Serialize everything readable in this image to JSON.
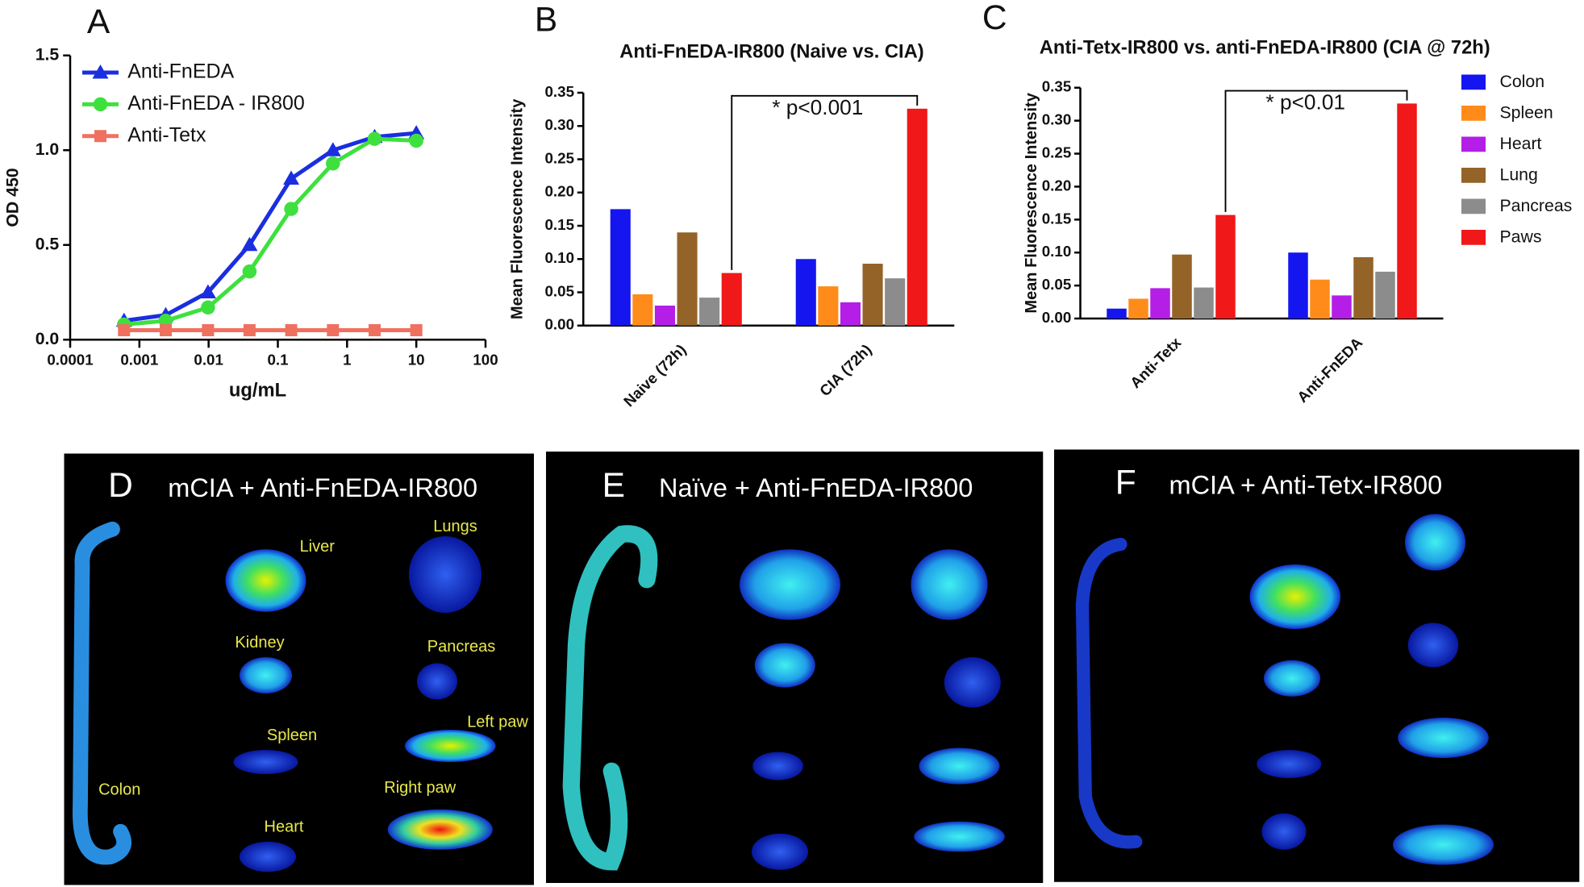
{
  "chart_data": [
    {
      "type": "line",
      "label": "A",
      "xlabel": "ug/mL",
      "ylabel": "OD 450",
      "xscale": "log",
      "x": [
        0.0006,
        0.0024,
        0.0098,
        0.039,
        0.156,
        0.625,
        2.5,
        10
      ],
      "series": [
        {
          "name": "Anti-FnEDA",
          "color": "#1a2ee0",
          "marker": "triangle",
          "values": [
            0.1,
            0.13,
            0.25,
            0.5,
            0.85,
            1.0,
            1.07,
            1.09
          ]
        },
        {
          "name": "Anti-FnEDA - IR800",
          "color": "#3ee03e",
          "marker": "circle",
          "values": [
            0.08,
            0.1,
            0.17,
            0.36,
            0.69,
            0.93,
            1.06,
            1.05
          ]
        },
        {
          "name": "Anti-Tetx",
          "color": "#f07060",
          "marker": "square",
          "values": [
            0.05,
            0.05,
            0.05,
            0.05,
            0.05,
            0.05,
            0.05,
            0.05
          ]
        }
      ],
      "xlim": [
        0.0001,
        100
      ],
      "xticks": [
        0.0001,
        0.001,
        0.01,
        0.1,
        1,
        10,
        100
      ],
      "ylim": [
        0,
        1.5
      ],
      "yticks": [
        {
          "value": 0,
          "label": "0.0"
        },
        {
          "value": 0.5,
          "label": "0.5"
        },
        {
          "value": 1,
          "label": "1.0"
        },
        {
          "value": 1.5,
          "label": "1.5"
        }
      ],
      "legend": "upper left"
    },
    {
      "type": "bar",
      "label": "B",
      "title": "Anti-FnEDA-IR800 (Naive vs. CIA)",
      "ylabel": "Mean Fluorescence Intensity",
      "categories": [
        "Naive (72h)",
        "CIA (72h)"
      ],
      "series": [
        {
          "color": "#1515f0",
          "values": [
            0.175,
            0.1
          ]
        },
        {
          "color": "#ff8c1a",
          "values": [
            0.047,
            0.059
          ]
        },
        {
          "color": "#b41ee6",
          "values": [
            0.03,
            0.035
          ]
        },
        {
          "color": "#946328",
          "values": [
            0.14,
            0.093
          ]
        },
        {
          "color": "#8c8c8c",
          "values": [
            0.042,
            0.071
          ]
        },
        {
          "color": "#f01818",
          "values": [
            0.079,
            0.326
          ]
        }
      ],
      "ylim": [
        0,
        0.35
      ],
      "yticks": [
        {
          "value": 0,
          "label": "0.00"
        },
        {
          "value": 0.05,
          "label": "0.05"
        },
        {
          "value": 0.1,
          "label": "0.10"
        },
        {
          "value": 0.15,
          "label": "0.15"
        },
        {
          "value": 0.2,
          "label": "0.20"
        },
        {
          "value": 0.25,
          "label": "0.25"
        },
        {
          "value": 0.3,
          "label": "0.30"
        },
        {
          "value": 0.35,
          "label": "0.35"
        }
      ],
      "annotation": "* p<0.001"
    },
    {
      "type": "bar",
      "label": "C",
      "title": "Anti-Tetx-IR800 vs. anti-FnEDA-IR800 (CIA @ 72h)",
      "ylabel": "Mean  Fluorescence Intensity",
      "categories": [
        "Anti-Tetx",
        "Anti-FnEDA"
      ],
      "series": [
        {
          "name": "Colon",
          "color": "#1515f0",
          "values": [
            0.015,
            0.1
          ]
        },
        {
          "name": "Spleen",
          "color": "#ff8c1a",
          "values": [
            0.03,
            0.059
          ]
        },
        {
          "name": "Heart",
          "color": "#b41ee6",
          "values": [
            0.046,
            0.035
          ]
        },
        {
          "name": "Lung",
          "color": "#946328",
          "values": [
            0.097,
            0.093
          ]
        },
        {
          "name": "Pancreas",
          "color": "#8c8c8c",
          "values": [
            0.047,
            0.071
          ]
        },
        {
          "name": "Paws",
          "color": "#f01818",
          "values": [
            0.157,
            0.326
          ]
        }
      ],
      "ylim": [
        0,
        0.35
      ],
      "yticks": [
        {
          "value": 0,
          "label": "0.00"
        },
        {
          "value": 0.05,
          "label": "0.05"
        },
        {
          "value": 0.1,
          "label": "0.10"
        },
        {
          "value": 0.15,
          "label": "0.15"
        },
        {
          "value": 0.2,
          "label": "0.20"
        },
        {
          "value": 0.25,
          "label": "0.25"
        },
        {
          "value": 0.3,
          "label": "0.30"
        },
        {
          "value": 0.35,
          "label": "0.35"
        }
      ],
      "annotation": "* p<0.01",
      "legend": "right"
    }
  ],
  "images": [
    {
      "label": "D",
      "title": "mCIA + Anti-FnEDA-IR800",
      "labels": [
        "Liver",
        "Lungs",
        "Kidney",
        "Pancreas",
        "Spleen",
        "Left paw",
        "Colon",
        "Right paw",
        "Heart"
      ]
    },
    {
      "label": "E",
      "title": "Naïve + Anti-FnEDA-IR800"
    },
    {
      "label": "F",
      "title": "mCIA + Anti-Tetx-IR800"
    }
  ]
}
